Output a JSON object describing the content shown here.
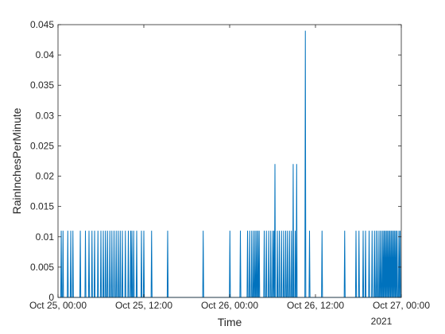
{
  "chart_data": {
    "type": "line",
    "xlabel": "Time",
    "ylabel": "RainInchesPerMinute",
    "xlim": [
      "2021-10-25T00:00",
      "2021-10-27T00:00"
    ],
    "ylim": [
      0,
      0.045
    ],
    "grid": false,
    "legend": "none",
    "colors": {
      "series": "#0072BD",
      "axis": "#262626"
    },
    "y_ticks": [
      {
        "value": 0,
        "label": "0"
      },
      {
        "value": 0.005,
        "label": "0.005"
      },
      {
        "value": 0.01,
        "label": "0.01"
      },
      {
        "value": 0.015,
        "label": "0.015"
      },
      {
        "value": 0.02,
        "label": "0.02"
      },
      {
        "value": 0.025,
        "label": "0.025"
      },
      {
        "value": 0.03,
        "label": "0.03"
      },
      {
        "value": 0.035,
        "label": "0.035"
      },
      {
        "value": 0.04,
        "label": "0.04"
      },
      {
        "value": 0.045,
        "label": "0.045"
      }
    ],
    "x_ticks": [
      {
        "value": "2021-10-25T00:00",
        "label": "Oct 25, 00:00"
      },
      {
        "value": "2021-10-25T12:00",
        "label": "Oct 25, 12:00"
      },
      {
        "value": "2021-10-26T00:00",
        "label": "Oct 26, 00:00"
      },
      {
        "value": "2021-10-26T12:00",
        "label": "Oct 26, 12:00"
      },
      {
        "value": "2021-10-27T00:00",
        "label": "Oct 27, 00:00"
      }
    ],
    "x_secondary_label": "2021",
    "series": [
      {
        "points": [
          [
            "2021-10-25T00:27",
            0.011
          ],
          [
            "2021-10-25T00:42",
            0.011
          ],
          [
            "2021-10-25T01:22",
            0.011
          ],
          [
            "2021-10-25T01:47",
            0.011
          ],
          [
            "2021-10-25T02:05",
            0.011
          ],
          [
            "2021-10-25T03:07",
            0.011
          ],
          [
            "2021-10-25T03:50",
            0.011
          ],
          [
            "2021-10-25T04:20",
            0.011
          ],
          [
            "2021-10-25T04:45",
            0.011
          ],
          [
            "2021-10-25T05:07",
            0.011
          ],
          [
            "2021-10-25T05:35",
            0.011
          ],
          [
            "2021-10-25T06:00",
            0.011
          ],
          [
            "2021-10-25T06:20",
            0.011
          ],
          [
            "2021-10-25T06:38",
            0.011
          ],
          [
            "2021-10-25T06:55",
            0.011
          ],
          [
            "2021-10-25T07:15",
            0.011
          ],
          [
            "2021-10-25T07:32",
            0.011
          ],
          [
            "2021-10-25T07:50",
            0.011
          ],
          [
            "2021-10-25T08:08",
            0.011
          ],
          [
            "2021-10-25T08:25",
            0.011
          ],
          [
            "2021-10-25T08:42",
            0.011
          ],
          [
            "2021-10-25T09:00",
            0.011
          ],
          [
            "2021-10-25T09:25",
            0.011
          ],
          [
            "2021-10-25T09:50",
            0.011
          ],
          [
            "2021-10-25T10:10",
            0.011
          ],
          [
            "2021-10-25T10:20",
            0.011
          ],
          [
            "2021-10-25T10:35",
            0.011
          ],
          [
            "2021-10-25T11:00",
            0.011
          ],
          [
            "2021-10-25T11:40",
            0.011
          ],
          [
            "2021-10-25T12:00",
            0.011
          ],
          [
            "2021-10-25T13:05",
            0.011
          ],
          [
            "2021-10-25T15:20",
            0.011
          ],
          [
            "2021-10-25T20:18",
            0.011
          ],
          [
            "2021-10-26T00:02",
            0.011
          ],
          [
            "2021-10-26T01:30",
            0.011
          ],
          [
            "2021-10-26T02:30",
            0.011
          ],
          [
            "2021-10-26T02:48",
            0.011
          ],
          [
            "2021-10-26T03:05",
            0.011
          ],
          [
            "2021-10-26T03:20",
            0.011
          ],
          [
            "2021-10-26T03:33",
            0.011
          ],
          [
            "2021-10-26T03:45",
            0.011
          ],
          [
            "2021-10-26T03:57",
            0.011
          ],
          [
            "2021-10-26T04:08",
            0.011
          ],
          [
            "2021-10-26T04:50",
            0.011
          ],
          [
            "2021-10-26T05:08",
            0.011
          ],
          [
            "2021-10-26T05:28",
            0.011
          ],
          [
            "2021-10-26T05:45",
            0.011
          ],
          [
            "2021-10-26T06:02",
            0.011
          ],
          [
            "2021-10-26T06:12",
            0.011
          ],
          [
            "2021-10-26T06:20",
            0.022
          ],
          [
            "2021-10-26T06:40",
            0.011
          ],
          [
            "2021-10-26T06:57",
            0.011
          ],
          [
            "2021-10-26T07:15",
            0.011
          ],
          [
            "2021-10-26T07:33",
            0.011
          ],
          [
            "2021-10-26T07:50",
            0.011
          ],
          [
            "2021-10-26T08:05",
            0.011
          ],
          [
            "2021-10-26T08:22",
            0.011
          ],
          [
            "2021-10-26T08:38",
            0.011
          ],
          [
            "2021-10-26T08:53",
            0.022
          ],
          [
            "2021-10-26T09:10",
            0.011
          ],
          [
            "2021-10-26T09:22",
            0.022
          ],
          [
            "2021-10-26T10:35",
            0.044
          ],
          [
            "2021-10-26T11:10",
            0.011
          ],
          [
            "2021-10-26T12:55",
            0.011
          ],
          [
            "2021-10-26T16:05",
            0.011
          ],
          [
            "2021-10-26T17:40",
            0.011
          ],
          [
            "2021-10-26T18:05",
            0.011
          ],
          [
            "2021-10-26T18:40",
            0.011
          ],
          [
            "2021-10-26T19:00",
            0.011
          ],
          [
            "2021-10-26T19:30",
            0.011
          ],
          [
            "2021-10-26T19:55",
            0.011
          ],
          [
            "2021-10-26T20:15",
            0.011
          ],
          [
            "2021-10-26T20:30",
            0.011
          ],
          [
            "2021-10-26T20:45",
            0.011
          ],
          [
            "2021-10-26T21:00",
            0.011
          ],
          [
            "2021-10-26T21:12",
            0.011
          ],
          [
            "2021-10-26T21:25",
            0.011
          ],
          [
            "2021-10-26T21:35",
            0.011
          ],
          [
            "2021-10-26T21:45",
            0.011
          ],
          [
            "2021-10-26T21:55",
            0.011
          ],
          [
            "2021-10-26T22:05",
            0.011
          ],
          [
            "2021-10-26T22:15",
            0.011
          ],
          [
            "2021-10-26T22:25",
            0.011
          ],
          [
            "2021-10-26T22:35",
            0.011
          ],
          [
            "2021-10-26T22:45",
            0.011
          ],
          [
            "2021-10-26T22:55",
            0.011
          ],
          [
            "2021-10-26T23:05",
            0.011
          ],
          [
            "2021-10-26T23:15",
            0.011
          ],
          [
            "2021-10-26T23:25",
            0.011
          ],
          [
            "2021-10-26T23:40",
            0.011
          ],
          [
            "2021-10-26T23:50",
            0.011
          ]
        ]
      }
    ]
  }
}
